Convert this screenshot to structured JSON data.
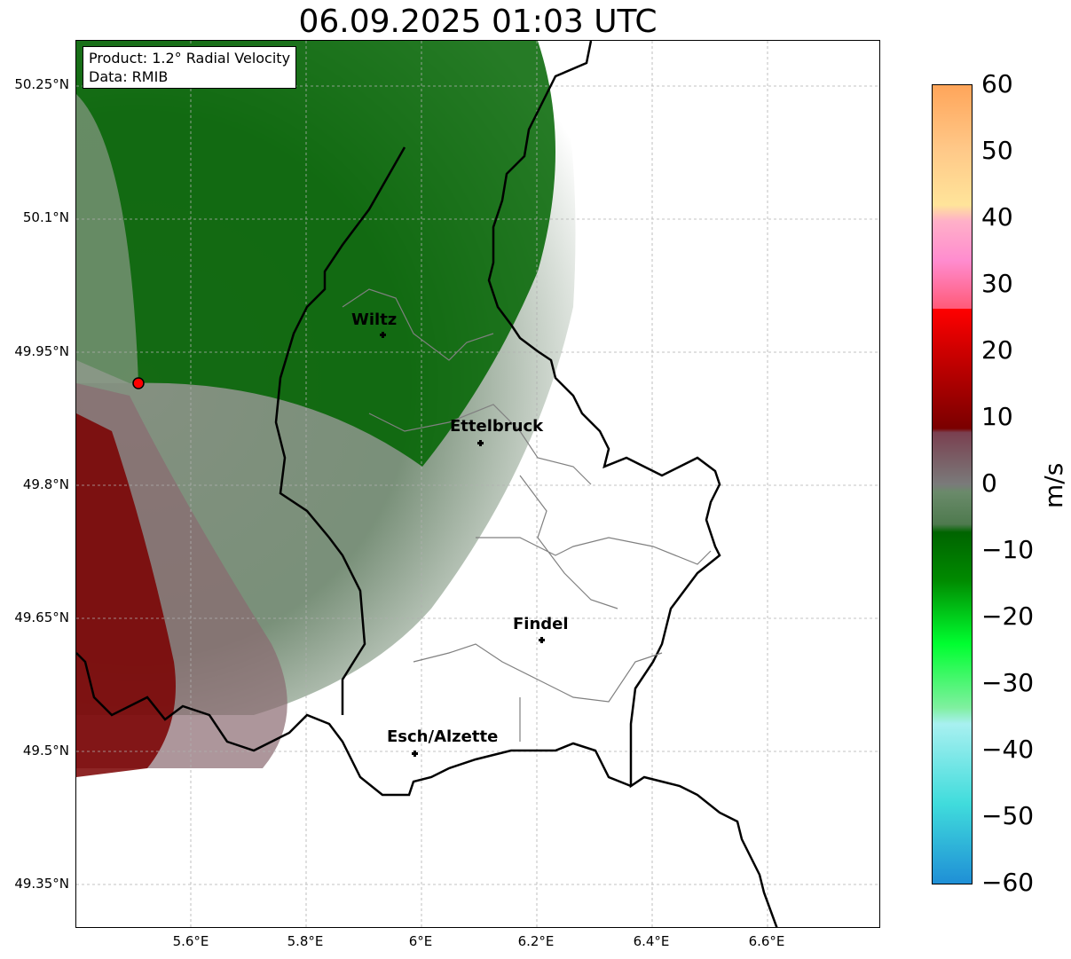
{
  "title": "06.09.2025 01:03 UTC",
  "info": {
    "product": "Product: 1.2° Radial Velocity",
    "data": "Data: RMIB"
  },
  "lat_ticks": [
    "50.25°N",
    "50.1°N",
    "49.95°N",
    "49.8°N",
    "49.65°N",
    "49.5°N",
    "49.35°N"
  ],
  "lon_ticks": [
    "5.6°E",
    "5.8°E",
    "6°E",
    "6.2°E",
    "6.4°E",
    "6.6°E"
  ],
  "colorbar": {
    "unit": "m/s",
    "ticks": [
      "60",
      "50",
      "40",
      "30",
      "20",
      "10",
      "0",
      "−10",
      "−20",
      "−30",
      "−40",
      "−50",
      "−60"
    ],
    "range": [
      -60,
      60
    ],
    "colors": {
      "pos_high": "#ffa55a",
      "pos_mid": "#ff8ccf",
      "pos_low": "#ff0000",
      "zero": "#7a7a7a",
      "neg_low": "#006400",
      "neg_mid": "#00ff30",
      "neg_high": "#1f8fd6"
    }
  },
  "cities": [
    {
      "name": "Wiltz"
    },
    {
      "name": "Ettelbruck"
    },
    {
      "name": "Findel"
    },
    {
      "name": "Esch/Alzette"
    }
  ],
  "radar_site": {
    "marker_color": "#ff0000"
  }
}
